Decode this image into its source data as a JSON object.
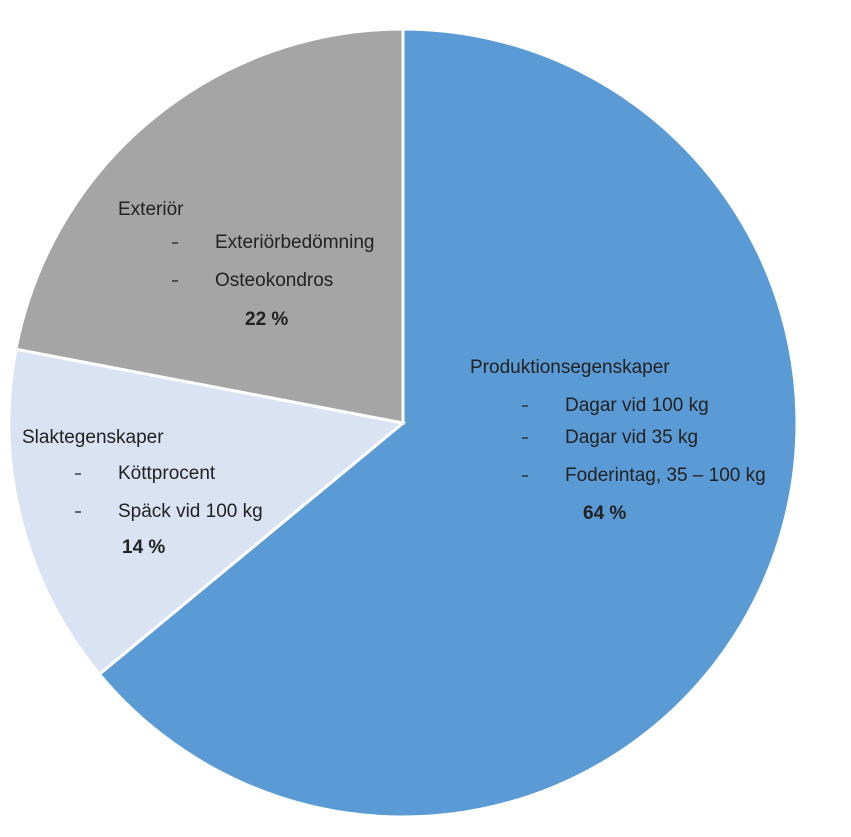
{
  "chart_data": {
    "type": "pie",
    "categories": [
      "Produktionsegenskaper",
      "Slaktegenskaper",
      "Exteriör"
    ],
    "values": [
      64,
      14,
      22
    ],
    "value_labels": [
      "64 %",
      "14 %",
      "22 %"
    ],
    "details": [
      [
        "Dagar vid 100 kg",
        "Dagar vid 35 kg",
        "Foderintag, 35 – 100 kg"
      ],
      [
        "Köttprocent",
        "Späck vid 100 kg"
      ],
      [
        "Exteriörbedömning",
        "Osteokondros"
      ]
    ],
    "colors": [
      "#5b9bd5",
      "#dae3f3",
      "#a5a5a5"
    ]
  }
}
